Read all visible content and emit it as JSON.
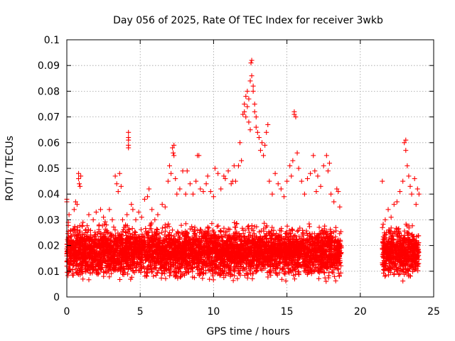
{
  "chart_data": {
    "type": "scatter",
    "title": "Day 056 of 2025, Rate Of TEC Index for receiver 3wkb",
    "xlabel": "GPS time / hours",
    "ylabel": "ROTI / TECUs",
    "xlim": [
      0,
      25
    ],
    "ylim": [
      0,
      0.1
    ],
    "xticks": [
      "0",
      "5",
      "10",
      "15",
      "20",
      "25"
    ],
    "yticks": [
      "0",
      "0.01",
      "0.02",
      "0.03",
      "0.04",
      "0.05",
      "0.06",
      "0.07",
      "0.08",
      "0.09",
      "0.1"
    ],
    "grid": true,
    "marker": "+",
    "series_color": "#ff0000",
    "points": [
      [
        0.0,
        0.037
      ],
      [
        0.0,
        0.038
      ],
      [
        0.05,
        0.018
      ],
      [
        0.1,
        0.029
      ],
      [
        0.15,
        0.032
      ],
      [
        0.2,
        0.023
      ],
      [
        0.3,
        0.021
      ],
      [
        0.4,
        0.026
      ],
      [
        0.5,
        0.034
      ],
      [
        0.6,
        0.037
      ],
      [
        0.7,
        0.036
      ],
      [
        0.8,
        0.046
      ],
      [
        0.8,
        0.048
      ],
      [
        0.85,
        0.044
      ],
      [
        0.9,
        0.043
      ],
      [
        0.95,
        0.047
      ],
      [
        1.1,
        0.029
      ],
      [
        1.3,
        0.025
      ],
      [
        1.5,
        0.032
      ],
      [
        1.8,
        0.03
      ],
      [
        2.0,
        0.033
      ],
      [
        2.2,
        0.028
      ],
      [
        2.3,
        0.034
      ],
      [
        2.5,
        0.031
      ],
      [
        2.7,
        0.028
      ],
      [
        2.9,
        0.034
      ],
      [
        3.1,
        0.03
      ],
      [
        3.3,
        0.047
      ],
      [
        3.4,
        0.044
      ],
      [
        3.5,
        0.041
      ],
      [
        3.6,
        0.048
      ],
      [
        3.7,
        0.043
      ],
      [
        3.8,
        0.03
      ],
      [
        4.0,
        0.028
      ],
      [
        4.1,
        0.032
      ],
      [
        4.2,
        0.064
      ],
      [
        4.2,
        0.062
      ],
      [
        4.2,
        0.061
      ],
      [
        4.2,
        0.059
      ],
      [
        4.2,
        0.058
      ],
      [
        4.4,
        0.036
      ],
      [
        4.5,
        0.034
      ],
      [
        4.7,
        0.03
      ],
      [
        4.9,
        0.033
      ],
      [
        5.1,
        0.031
      ],
      [
        5.3,
        0.038
      ],
      [
        5.5,
        0.039
      ],
      [
        5.6,
        0.042
      ],
      [
        5.8,
        0.034
      ],
      [
        6.0,
        0.03
      ],
      [
        6.2,
        0.032
      ],
      [
        6.5,
        0.036
      ],
      [
        6.7,
        0.035
      ],
      [
        6.9,
        0.045
      ],
      [
        7.0,
        0.051
      ],
      [
        7.1,
        0.048
      ],
      [
        7.2,
        0.058
      ],
      [
        7.25,
        0.056
      ],
      [
        7.3,
        0.055
      ],
      [
        7.3,
        0.059
      ],
      [
        7.4,
        0.046
      ],
      [
        7.5,
        0.04
      ],
      [
        7.7,
        0.042
      ],
      [
        7.9,
        0.049
      ],
      [
        8.1,
        0.04
      ],
      [
        8.2,
        0.049
      ],
      [
        8.4,
        0.044
      ],
      [
        8.6,
        0.04
      ],
      [
        8.8,
        0.045
      ],
      [
        8.9,
        0.055
      ],
      [
        9.0,
        0.055
      ],
      [
        9.1,
        0.042
      ],
      [
        9.3,
        0.041
      ],
      [
        9.5,
        0.044
      ],
      [
        9.6,
        0.047
      ],
      [
        9.8,
        0.041
      ],
      [
        10.0,
        0.039
      ],
      [
        10.1,
        0.05
      ],
      [
        10.3,
        0.048
      ],
      [
        10.5,
        0.042
      ],
      [
        10.7,
        0.047
      ],
      [
        10.8,
        0.046
      ],
      [
        11.0,
        0.049
      ],
      [
        11.2,
        0.044
      ],
      [
        11.3,
        0.045
      ],
      [
        11.4,
        0.051
      ],
      [
        11.5,
        0.045
      ],
      [
        11.7,
        0.051
      ],
      [
        11.8,
        0.06
      ],
      [
        11.9,
        0.053
      ],
      [
        12.0,
        0.071
      ],
      [
        12.1,
        0.072
      ],
      [
        12.1,
        0.075
      ],
      [
        12.2,
        0.07
      ],
      [
        12.2,
        0.078
      ],
      [
        12.3,
        0.08
      ],
      [
        12.3,
        0.074
      ],
      [
        12.4,
        0.077
      ],
      [
        12.4,
        0.068
      ],
      [
        12.5,
        0.065
      ],
      [
        12.5,
        0.084
      ],
      [
        12.55,
        0.091
      ],
      [
        12.6,
        0.092
      ],
      [
        12.6,
        0.086
      ],
      [
        12.7,
        0.082
      ],
      [
        12.7,
        0.08
      ],
      [
        12.8,
        0.075
      ],
      [
        12.8,
        0.072
      ],
      [
        12.9,
        0.07
      ],
      [
        12.9,
        0.066
      ],
      [
        13.0,
        0.064
      ],
      [
        13.1,
        0.062
      ],
      [
        13.2,
        0.057
      ],
      [
        13.3,
        0.06
      ],
      [
        13.4,
        0.055
      ],
      [
        13.5,
        0.059
      ],
      [
        13.6,
        0.064
      ],
      [
        13.7,
        0.067
      ],
      [
        13.8,
        0.045
      ],
      [
        14.0,
        0.04
      ],
      [
        14.2,
        0.048
      ],
      [
        14.4,
        0.044
      ],
      [
        14.6,
        0.042
      ],
      [
        14.8,
        0.039
      ],
      [
        15.0,
        0.045
      ],
      [
        15.2,
        0.051
      ],
      [
        15.3,
        0.047
      ],
      [
        15.4,
        0.053
      ],
      [
        15.5,
        0.071
      ],
      [
        15.5,
        0.072
      ],
      [
        15.6,
        0.07
      ],
      [
        15.7,
        0.056
      ],
      [
        15.8,
        0.05
      ],
      [
        16.0,
        0.045
      ],
      [
        16.2,
        0.04
      ],
      [
        16.4,
        0.046
      ],
      [
        16.6,
        0.048
      ],
      [
        16.8,
        0.055
      ],
      [
        16.9,
        0.049
      ],
      [
        17.0,
        0.041
      ],
      [
        17.1,
        0.047
      ],
      [
        17.3,
        0.043
      ],
      [
        17.5,
        0.051
      ],
      [
        17.7,
        0.055
      ],
      [
        17.8,
        0.049
      ],
      [
        17.9,
        0.052
      ],
      [
        18.0,
        0.04
      ],
      [
        18.2,
        0.037
      ],
      [
        18.4,
        0.042
      ],
      [
        18.5,
        0.041
      ],
      [
        18.6,
        0.035
      ],
      [
        21.5,
        0.045
      ],
      [
        21.7,
        0.03
      ],
      [
        21.9,
        0.034
      ],
      [
        22.1,
        0.031
      ],
      [
        22.3,
        0.036
      ],
      [
        22.5,
        0.037
      ],
      [
        22.7,
        0.041
      ],
      [
        22.9,
        0.045
      ],
      [
        23.0,
        0.06
      ],
      [
        23.1,
        0.061
      ],
      [
        23.1,
        0.057
      ],
      [
        23.2,
        0.051
      ],
      [
        23.3,
        0.047
      ],
      [
        23.4,
        0.043
      ],
      [
        23.5,
        0.04
      ],
      [
        23.7,
        0.046
      ],
      [
        23.8,
        0.036
      ],
      [
        23.9,
        0.042
      ],
      [
        24.0,
        0.04
      ]
    ],
    "bands": [
      {
        "x": [
          0.0,
          18.7
        ],
        "y": [
          0.005,
          0.03
        ]
      },
      {
        "x": [
          21.5,
          24.0
        ],
        "y": [
          0.005,
          0.03
        ]
      }
    ]
  }
}
